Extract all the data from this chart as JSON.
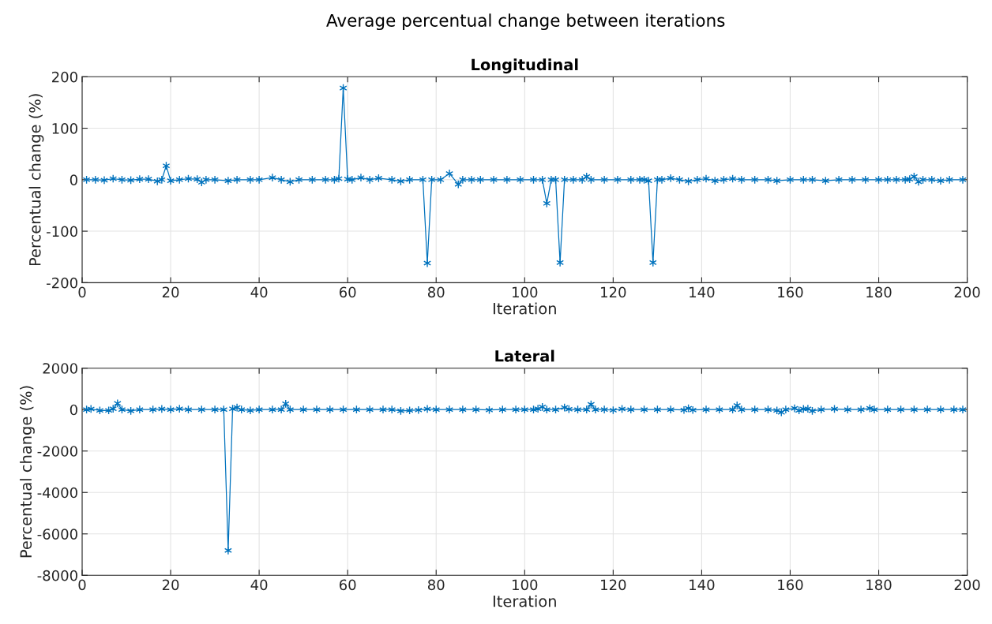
{
  "chart_data": [
    {
      "type": "line",
      "title": "Longitudinal",
      "xlabel": "Iteration",
      "ylabel": "Percentual change (%)",
      "annotations": [
        "Average percentual change between iterations"
      ],
      "xlim": [
        0,
        200
      ],
      "xticks": [
        0,
        20,
        40,
        60,
        80,
        100,
        120,
        140,
        160,
        180,
        200
      ],
      "ylim": [
        -200,
        200
      ],
      "yticks": [
        -200,
        -100,
        0,
        100,
        200
      ],
      "grid": true,
      "marker": "cross",
      "line_style": "solid",
      "series": [
        {
          "color": "#0072bd",
          "x": [
            1,
            3,
            5,
            7,
            9,
            11,
            13,
            15,
            17,
            18,
            19,
            20,
            22,
            24,
            26,
            27,
            28,
            30,
            33,
            35,
            38,
            40,
            43,
            45,
            47,
            49,
            52,
            55,
            57,
            58,
            59,
            60,
            61,
            63,
            65,
            67,
            70,
            72,
            74,
            77,
            78,
            79,
            81,
            83,
            85,
            86,
            88,
            90,
            93,
            96,
            99,
            102,
            104,
            105,
            106,
            107,
            108,
            109,
            111,
            113,
            114,
            115,
            118,
            121,
            124,
            126,
            127,
            128,
            129,
            130,
            131,
            133,
            135,
            137,
            139,
            141,
            143,
            145,
            147,
            149,
            152,
            155,
            157,
            160,
            163,
            165,
            168,
            171,
            174,
            177,
            180,
            182,
            184,
            186,
            187,
            188,
            189,
            190,
            192,
            194,
            196,
            199
          ],
          "values": [
            0,
            0,
            -1,
            2,
            0,
            -1,
            1,
            1,
            -3,
            0,
            27,
            -2,
            0,
            2,
            1,
            -5,
            0,
            0,
            -2,
            0,
            0,
            0,
            4,
            0,
            -4,
            0,
            0,
            0,
            0,
            2,
            178,
            1,
            0,
            4,
            0,
            3,
            0,
            -3,
            0,
            0,
            -162,
            0,
            0,
            12,
            -9,
            0,
            0,
            0,
            0,
            0,
            0,
            0,
            0,
            -46,
            0,
            0,
            -161,
            0,
            0,
            0,
            6,
            0,
            0,
            0,
            0,
            0,
            0,
            -2,
            -161,
            0,
            0,
            3,
            0,
            -3,
            0,
            2,
            -2,
            0,
            2,
            0,
            0,
            0,
            -2,
            0,
            0,
            0,
            -2,
            0,
            0,
            0,
            0,
            0,
            0,
            0,
            1,
            6,
            -4,
            0,
            0,
            -2,
            0,
            0
          ]
        }
      ]
    },
    {
      "type": "line",
      "title": "Lateral",
      "xlabel": "Iteration",
      "ylabel": "Percentual change (%)",
      "xlim": [
        0,
        200
      ],
      "xticks": [
        0,
        20,
        40,
        60,
        80,
        100,
        120,
        140,
        160,
        180,
        200
      ],
      "ylim": [
        -8000,
        2000
      ],
      "yticks": [
        -8000,
        -6000,
        -4000,
        -2000,
        0,
        2000
      ],
      "grid": true,
      "marker": "cross",
      "line_style": "solid",
      "series": [
        {
          "color": "#0072bd",
          "x": [
            1,
            2,
            4,
            6,
            7,
            8,
            9,
            11,
            13,
            16,
            18,
            20,
            22,
            24,
            27,
            30,
            32,
            33,
            34,
            35,
            36,
            38,
            40,
            43,
            45,
            46,
            47,
            50,
            53,
            56,
            59,
            62,
            65,
            68,
            70,
            72,
            74,
            76,
            78,
            80,
            83,
            86,
            89,
            92,
            95,
            98,
            100,
            102,
            103,
            104,
            105,
            107,
            109,
            110,
            112,
            114,
            115,
            116,
            118,
            120,
            122,
            124,
            127,
            130,
            133,
            136,
            137,
            138,
            141,
            144,
            147,
            148,
            149,
            152,
            155,
            157,
            158,
            159,
            161,
            162,
            163,
            164,
            165,
            167,
            170,
            173,
            176,
            178,
            179,
            182,
            185,
            188,
            191,
            194,
            197,
            199
          ],
          "values": [
            0,
            30,
            -40,
            -40,
            40,
            300,
            0,
            -60,
            0,
            0,
            30,
            0,
            40,
            0,
            0,
            0,
            0,
            -6800,
            40,
            100,
            0,
            -40,
            0,
            0,
            0,
            280,
            0,
            0,
            0,
            0,
            0,
            0,
            0,
            0,
            0,
            -60,
            -40,
            -20,
            30,
            0,
            0,
            0,
            0,
            -20,
            0,
            0,
            0,
            0,
            40,
            130,
            0,
            0,
            100,
            20,
            0,
            0,
            250,
            0,
            0,
            -30,
            30,
            0,
            0,
            0,
            0,
            -20,
            60,
            -20,
            0,
            0,
            0,
            200,
            0,
            0,
            0,
            -40,
            -130,
            0,
            60,
            -40,
            30,
            40,
            -60,
            0,
            30,
            0,
            0,
            60,
            0,
            0,
            0,
            0,
            0,
            0,
            0,
            0
          ]
        }
      ]
    }
  ]
}
